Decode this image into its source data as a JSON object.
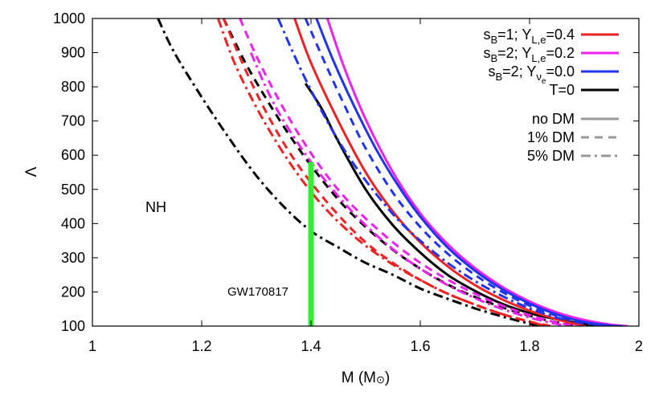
{
  "chart_data": {
    "type": "line",
    "xlabel": "M (M",
    "xlabel_symbol": "⊙",
    "xlabel_close": ")",
    "ylabel": "Λ",
    "xlim": [
      1,
      2
    ],
    "ylim": [
      100,
      1000
    ],
    "x_ticks": [
      "1",
      "1.2",
      "1.4",
      "1.6",
      "1.8",
      "2"
    ],
    "y_ticks": [
      "100",
      "200",
      "300",
      "400",
      "500",
      "600",
      "700",
      "800",
      "900",
      "1000"
    ],
    "annotations": {
      "region_label": "NH",
      "event_label": "GW170817",
      "event_bar": {
        "M": 1.4,
        "lambda_min": 100,
        "lambda_max": 580,
        "color": "#33ee33"
      }
    },
    "legend_cases": [
      {
        "main": "s",
        "sub": "B",
        "mid": "=1; Y",
        "sub2": "L,e",
        "tail": "=0.4",
        "color": "#ee2222"
      },
      {
        "main": "s",
        "sub": "B",
        "mid": "=2; Y",
        "sub2": "L,e",
        "tail": "=0.2",
        "color": "#ee22ee"
      },
      {
        "main": "s",
        "sub": "B",
        "mid": "=2; Y",
        "sub2": "ν",
        "sub3": "e",
        "tail": "=0.0",
        "color": "#2233ee"
      },
      {
        "main": "T=0",
        "color": "#000000"
      }
    ],
    "legend_dm": [
      {
        "label": "no DM",
        "style": "solid",
        "color": "#999999"
      },
      {
        "label": "1% DM",
        "style": "dashed",
        "color": "#999999"
      },
      {
        "label": "5% DM",
        "style": "dashdot",
        "color": "#999999"
      }
    ],
    "series": [
      {
        "case": "T=0",
        "dm": "no DM",
        "color": "#000000",
        "style": "solid",
        "x": [
          1.39,
          1.42,
          1.45,
          1.5,
          1.55,
          1.6,
          1.65,
          1.7,
          1.75,
          1.8,
          1.85,
          1.9,
          1.93
        ],
        "y": [
          810,
          735,
          640,
          500,
          395,
          315,
          250,
          203,
          165,
          138,
          120,
          106,
          100
        ]
      },
      {
        "case": "T=0",
        "dm": "1% DM",
        "color": "#000000",
        "style": "dashed",
        "x": [
          1.24,
          1.28,
          1.32,
          1.36,
          1.4,
          1.45,
          1.5,
          1.55,
          1.6,
          1.65,
          1.7,
          1.75,
          1.8,
          1.85,
          1.9
        ],
        "y": [
          1000,
          870,
          760,
          660,
          570,
          470,
          390,
          323,
          268,
          222,
          185,
          155,
          130,
          111,
          100
        ]
      },
      {
        "case": "T=0",
        "dm": "5% DM",
        "color": "#000000",
        "style": "dashdot",
        "x": [
          1.12,
          1.15,
          1.2,
          1.25,
          1.3,
          1.35,
          1.4,
          1.45,
          1.5,
          1.55,
          1.6,
          1.65,
          1.7,
          1.75,
          1.8,
          1.82
        ],
        "y": [
          1000,
          900,
          770,
          650,
          540,
          450,
          378,
          330,
          285,
          250,
          210,
          180,
          152,
          128,
          107,
          100
        ]
      },
      {
        "case": "sB=1; YL,e=0.4",
        "dm": "no DM",
        "color": "#ee2222",
        "style": "solid",
        "x": [
          1.37,
          1.4,
          1.45,
          1.5,
          1.55,
          1.6,
          1.65,
          1.7,
          1.75,
          1.8,
          1.85,
          1.9
        ],
        "y": [
          1000,
          870,
          700,
          550,
          435,
          345,
          275,
          220,
          178,
          145,
          120,
          100
        ]
      },
      {
        "case": "sB=1; YL,e=0.4",
        "dm": "1% DM",
        "color": "#ee2222",
        "style": "dashed",
        "x": [
          1.24,
          1.28,
          1.32,
          1.36,
          1.4,
          1.45,
          1.5,
          1.55,
          1.6,
          1.65,
          1.7,
          1.75,
          1.8,
          1.84
        ],
        "y": [
          1000,
          850,
          720,
          610,
          520,
          425,
          345,
          285,
          235,
          195,
          163,
          135,
          113,
          100
        ]
      },
      {
        "case": "sB=1; YL,e=0.4",
        "dm": "5% DM",
        "color": "#ee2222",
        "style": "dashdot",
        "x": [
          1.23,
          1.26,
          1.3,
          1.34,
          1.38,
          1.42,
          1.46,
          1.5,
          1.55,
          1.6,
          1.65,
          1.7,
          1.75,
          1.8,
          1.83
        ],
        "y": [
          1000,
          870,
          740,
          630,
          535,
          455,
          390,
          335,
          280,
          235,
          195,
          163,
          135,
          113,
          100
        ]
      },
      {
        "case": "sB=2; YL,e=0.2",
        "dm": "no DM",
        "color": "#ee22ee",
        "style": "solid",
        "x": [
          1.43,
          1.46,
          1.5,
          1.55,
          1.6,
          1.65,
          1.7,
          1.75,
          1.8,
          1.85,
          1.9,
          1.95,
          1.98
        ],
        "y": [
          1000,
          860,
          705,
          550,
          430,
          340,
          270,
          215,
          172,
          140,
          118,
          104,
          100
        ]
      },
      {
        "case": "sB=2; YL,e=0.2",
        "dm": "1% DM",
        "color": "#ee22ee",
        "style": "dashed",
        "x": [
          1.27,
          1.3,
          1.34,
          1.38,
          1.42,
          1.46,
          1.5,
          1.55,
          1.6,
          1.65,
          1.7,
          1.75,
          1.8,
          1.85,
          1.89
        ],
        "y": [
          1000,
          890,
          765,
          655,
          560,
          480,
          415,
          345,
          285,
          236,
          195,
          160,
          132,
          110,
          100
        ]
      },
      {
        "case": "sB=2; YL,e=0.2",
        "dm": "5% DM",
        "color": "#ee22ee",
        "style": "dashdot",
        "x": [
          1.29,
          1.32,
          1.35,
          1.4,
          1.45,
          1.5,
          1.55,
          1.6,
          1.65,
          1.7,
          1.75,
          1.8,
          1.85,
          1.88
        ],
        "y": [
          900,
          790,
          700,
          580,
          480,
          395,
          325,
          268,
          220,
          182,
          150,
          125,
          106,
          100
        ]
      },
      {
        "case": "sB=2; Yνe=0.0",
        "dm": "no DM",
        "color": "#2233ee",
        "style": "solid",
        "x": [
          1.41,
          1.44,
          1.48,
          1.52,
          1.56,
          1.6,
          1.65,
          1.7,
          1.75,
          1.8,
          1.85,
          1.9,
          1.95,
          1.97
        ],
        "y": [
          1000,
          880,
          740,
          615,
          510,
          420,
          330,
          262,
          208,
          166,
          134,
          112,
          101,
          100
        ]
      },
      {
        "case": "sB=2; Yνe=0.0",
        "dm": "1% DM",
        "color": "#2233ee",
        "style": "dashed",
        "x": [
          1.39,
          1.42,
          1.46,
          1.5,
          1.55,
          1.6,
          1.65,
          1.7,
          1.75,
          1.8,
          1.85,
          1.9,
          1.95,
          1.97
        ],
        "y": [
          1000,
          890,
          750,
          620,
          490,
          390,
          312,
          250,
          200,
          160,
          130,
          110,
          101,
          100
        ]
      },
      {
        "case": "sB=2; Yνe=0.0",
        "dm": "5% DM",
        "color": "#2233ee",
        "style": "dashdot",
        "x": [
          1.34,
          1.37,
          1.4,
          1.44,
          1.48,
          1.52,
          1.56,
          1.6,
          1.65,
          1.7,
          1.75,
          1.8,
          1.85,
          1.9,
          1.95,
          1.97
        ],
        "y": [
          1000,
          890,
          790,
          670,
          570,
          485,
          410,
          350,
          285,
          232,
          188,
          152,
          125,
          108,
          101,
          100
        ]
      }
    ]
  }
}
